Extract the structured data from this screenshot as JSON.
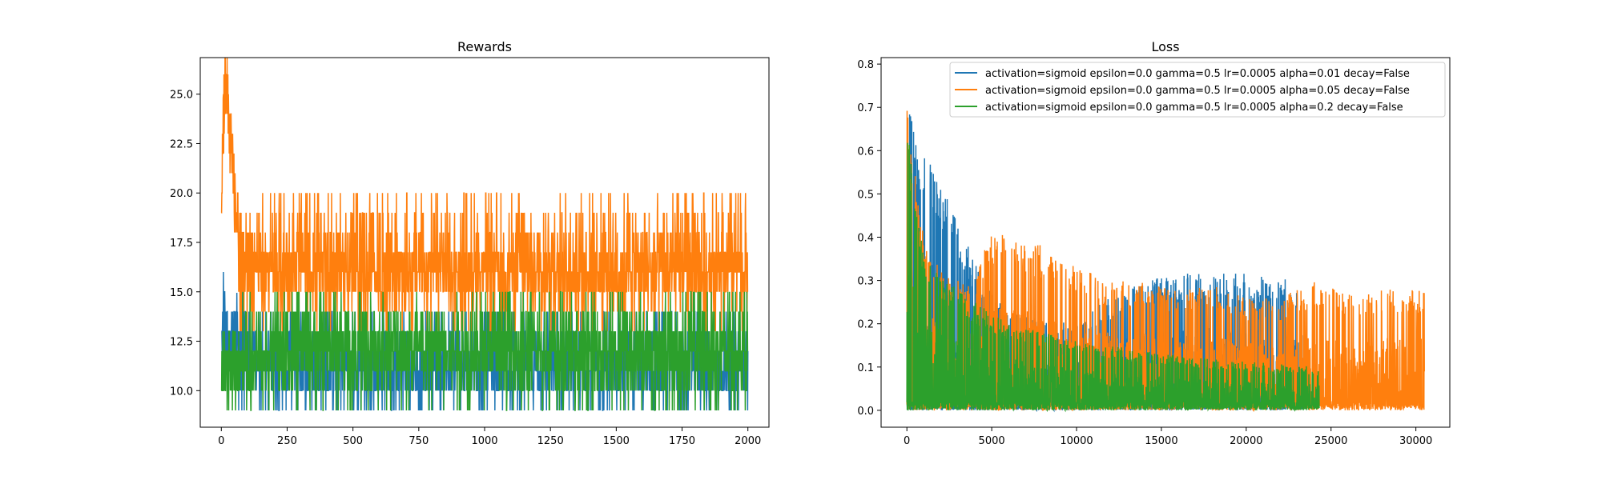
{
  "chart_data": [
    {
      "type": "line",
      "title": "Rewards",
      "xlabel": "",
      "ylabel": "",
      "xlim": [
        -80,
        2080
      ],
      "ylim": [
        8.15,
        26.85
      ],
      "xticks": [
        0,
        250,
        500,
        750,
        1000,
        1250,
        1500,
        1750,
        2000
      ],
      "xtick_labels": [
        "0",
        "250",
        "500",
        "750",
        "1000",
        "1250",
        "1500",
        "1750",
        "2000"
      ],
      "yticks": [
        10.0,
        12.5,
        15.0,
        17.5,
        20.0,
        22.5,
        25.0
      ],
      "ytick_labels": [
        "10.0",
        "12.5",
        "15.0",
        "17.5",
        "20.0",
        "22.5",
        "25.0"
      ],
      "grid": false,
      "series": [
        {
          "color": "#1f77b4",
          "x_range": [
            0,
            2000
          ],
          "points": [
            [
              0,
              12
            ],
            [
              8,
              14
            ],
            [
              20,
              13
            ],
            [
              40,
              12
            ],
            [
              60,
              13
            ],
            [
              80,
              14
            ],
            [
              100,
              12
            ],
            [
              150,
              12
            ],
            [
              200,
              11
            ],
            [
              250,
              11
            ],
            [
              300,
              11
            ],
            [
              400,
              11
            ],
            [
              500,
              11
            ],
            [
              600,
              11
            ],
            [
              700,
              11
            ],
            [
              800,
              11
            ],
            [
              900,
              11
            ],
            [
              1000,
              11
            ],
            [
              1100,
              11
            ],
            [
              1200,
              11
            ],
            [
              1300,
              11
            ],
            [
              1400,
              11
            ],
            [
              1500,
              11
            ],
            [
              1600,
              11
            ],
            [
              1700,
              11
            ],
            [
              1800,
              11
            ],
            [
              1900,
              11
            ],
            [
              2000,
              11
            ]
          ],
          "typical_range": [
            9,
            14
          ]
        },
        {
          "color": "#ff7f0e",
          "x_range": [
            0,
            2000
          ],
          "points": [
            [
              0,
              20
            ],
            [
              10,
              24
            ],
            [
              20,
              26
            ],
            [
              30,
              23
            ],
            [
              45,
              21
            ],
            [
              60,
              19
            ],
            [
              80,
              18
            ],
            [
              100,
              17
            ],
            [
              150,
              16
            ],
            [
              200,
              16
            ],
            [
              300,
              16
            ],
            [
              400,
              16
            ],
            [
              500,
              16
            ],
            [
              600,
              16
            ],
            [
              700,
              16
            ],
            [
              800,
              16
            ],
            [
              900,
              16
            ],
            [
              1000,
              16
            ],
            [
              1100,
              16
            ],
            [
              1200,
              16
            ],
            [
              1300,
              16
            ],
            [
              1400,
              16
            ],
            [
              1500,
              16
            ],
            [
              1600,
              16
            ],
            [
              1700,
              16
            ],
            [
              1800,
              16
            ],
            [
              1900,
              16
            ],
            [
              2000,
              16
            ]
          ],
          "typical_range": [
            13,
            20
          ]
        },
        {
          "color": "#2ca02c",
          "x_range": [
            0,
            2000
          ],
          "points": [
            [
              0,
              11
            ],
            [
              50,
              11
            ],
            [
              100,
              11
            ],
            [
              200,
              12
            ],
            [
              300,
              12
            ],
            [
              400,
              12
            ],
            [
              500,
              12
            ],
            [
              600,
              12
            ],
            [
              700,
              12
            ],
            [
              800,
              12
            ],
            [
              900,
              12
            ],
            [
              1000,
              12
            ],
            [
              1100,
              12
            ],
            [
              1200,
              12
            ],
            [
              1300,
              12
            ],
            [
              1400,
              12
            ],
            [
              1500,
              12
            ],
            [
              1600,
              12
            ],
            [
              1700,
              12
            ],
            [
              1800,
              12
            ],
            [
              1900,
              12
            ],
            [
              2000,
              12
            ]
          ],
          "typical_range": [
            9,
            15
          ]
        }
      ]
    },
    {
      "type": "line",
      "title": "Loss",
      "xlabel": "",
      "ylabel": "",
      "xlim": [
        -1520,
        32000
      ],
      "ylim": [
        -0.039,
        0.815
      ],
      "xticks": [
        0,
        5000,
        10000,
        15000,
        20000,
        25000,
        30000
      ],
      "xtick_labels": [
        "0",
        "5000",
        "10000",
        "15000",
        "20000",
        "25000",
        "30000"
      ],
      "yticks": [
        0.0,
        0.1,
        0.2,
        0.3,
        0.4,
        0.5,
        0.6,
        0.7,
        0.8
      ],
      "ytick_labels": [
        "0.0",
        "0.1",
        "0.2",
        "0.3",
        "0.4",
        "0.5",
        "0.6",
        "0.7",
        "0.8"
      ],
      "grid": false,
      "legend_position": "top-right",
      "series": [
        {
          "name": "activation=sigmoid epsilon=0.0 gamma=0.5 lr=0.0005 alpha=0.01 decay=False",
          "color": "#1f77b4",
          "x_range": [
            0,
            23300
          ],
          "envelope": [
            [
              0,
              0.76
            ],
            [
              200,
              0.7
            ],
            [
              500,
              0.62
            ],
            [
              1000,
              0.6
            ],
            [
              1500,
              0.57
            ],
            [
              2000,
              0.53
            ],
            [
              3000,
              0.44
            ],
            [
              4000,
              0.34
            ],
            [
              5000,
              0.27
            ],
            [
              6000,
              0.23
            ],
            [
              8000,
              0.21
            ],
            [
              10000,
              0.2
            ],
            [
              11000,
              0.24
            ],
            [
              13000,
              0.28
            ],
            [
              15000,
              0.31
            ],
            [
              17000,
              0.32
            ],
            [
              19000,
              0.32
            ],
            [
              21000,
              0.31
            ],
            [
              23300,
              0.3
            ]
          ],
          "floor": 0.0
        },
        {
          "name": "activation=sigmoid epsilon=0.0 gamma=0.5 lr=0.0005 alpha=0.05 decay=False",
          "color": "#ff7f0e",
          "x_range": [
            0,
            30500
          ],
          "envelope": [
            [
              0,
              0.76
            ],
            [
              100,
              0.68
            ],
            [
              300,
              0.62
            ],
            [
              600,
              0.5
            ],
            [
              1000,
              0.42
            ],
            [
              2000,
              0.33
            ],
            [
              3000,
              0.3
            ],
            [
              4000,
              0.3
            ],
            [
              5000,
              0.42
            ],
            [
              6000,
              0.4
            ],
            [
              8000,
              0.38
            ],
            [
              10000,
              0.33
            ],
            [
              12000,
              0.3
            ],
            [
              14000,
              0.3
            ],
            [
              16000,
              0.28
            ],
            [
              18000,
              0.3
            ],
            [
              20000,
              0.26
            ],
            [
              22000,
              0.26
            ],
            [
              24000,
              0.3
            ],
            [
              26000,
              0.27
            ],
            [
              28000,
              0.28
            ],
            [
              30500,
              0.28
            ]
          ],
          "floor": 0.0
        },
        {
          "name": "activation=sigmoid epsilon=0.0 gamma=0.5 lr=0.0005 alpha=0.2 decay=False",
          "color": "#2ca02c",
          "x_range": [
            0,
            24300
          ],
          "envelope": [
            [
              0,
              0.78
            ],
            [
              200,
              0.6
            ],
            [
              400,
              0.5
            ],
            [
              800,
              0.4
            ],
            [
              1500,
              0.33
            ],
            [
              2500,
              0.3
            ],
            [
              4000,
              0.25
            ],
            [
              6000,
              0.2
            ],
            [
              8000,
              0.18
            ],
            [
              10000,
              0.16
            ],
            [
              12000,
              0.15
            ],
            [
              15000,
              0.13
            ],
            [
              18000,
              0.12
            ],
            [
              21000,
              0.11
            ],
            [
              24300,
              0.1
            ]
          ],
          "floor": 0.0
        }
      ]
    }
  ]
}
